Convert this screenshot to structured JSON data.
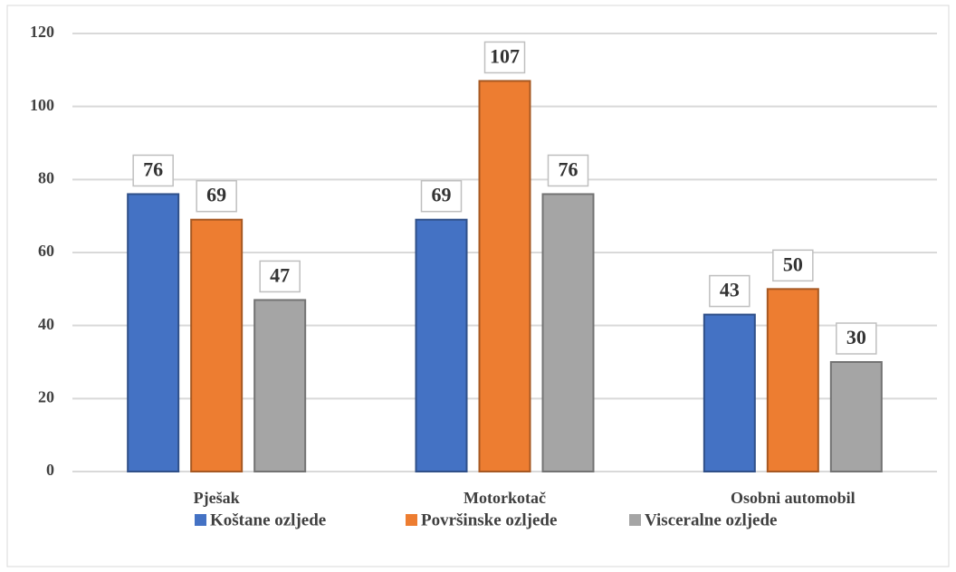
{
  "chart_data": {
    "type": "bar",
    "categories": [
      "Pješak",
      "Motorkotač",
      "Osobni automobil"
    ],
    "series": [
      {
        "name": "Koštane ozljede",
        "color": "#4472c4",
        "values": [
          76,
          69,
          43
        ]
      },
      {
        "name": "Površinske ozljede",
        "color": "#ed7d31",
        "values": [
          69,
          107,
          50
        ]
      },
      {
        "name": "Visceralne ozljede",
        "color": "#a5a5a5",
        "values": [
          47,
          76,
          30
        ]
      }
    ],
    "ylim": [
      0,
      120
    ],
    "yticks": [
      0,
      20,
      40,
      60,
      80,
      100,
      120
    ],
    "grid": true,
    "legend": "bottom"
  }
}
